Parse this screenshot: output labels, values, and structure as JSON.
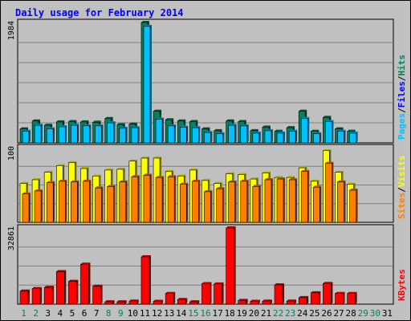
{
  "chart_data": {
    "type": "bar",
    "title": "Daily usage for February 2014",
    "categories": [
      "1",
      "2",
      "3",
      "4",
      "5",
      "6",
      "7",
      "8",
      "9",
      "10",
      "11",
      "12",
      "13",
      "14",
      "15",
      "16",
      "17",
      "18",
      "19",
      "20",
      "21",
      "22",
      "23",
      "24",
      "25",
      "26",
      "27",
      "28",
      "29",
      "30",
      "31"
    ],
    "weekend_days": [
      "1",
      "2",
      "8",
      "9",
      "15",
      "16",
      "22",
      "23",
      "29",
      "30"
    ],
    "panels": [
      {
        "id": "hits-files-pages",
        "ymax": 1984,
        "tick_label": "1984",
        "axis_labels": [
          "Pages",
          "/",
          "Files",
          "/",
          "Hits"
        ],
        "series": [
          {
            "name": "Hits",
            "color": "#00805c",
            "values": [
              230,
              360,
              290,
              345,
              350,
              345,
              340,
              400,
              300,
              310,
              1984,
              520,
              380,
              360,
              350,
              230,
              200,
              360,
              350,
              200,
              260,
              190,
              250,
              520,
              190,
              420,
              230,
              190,
              0,
              0,
              0
            ]
          },
          {
            "name": "Files",
            "color": "#00c0ff",
            "values": [
              190,
              290,
              230,
              265,
              290,
              280,
              280,
              330,
              240,
              250,
              1920,
              390,
              280,
              260,
              250,
              170,
              150,
              290,
              280,
              160,
              200,
              160,
              190,
              400,
              150,
              350,
              190,
              160,
              0,
              0,
              0
            ]
          },
          {
            "name": "Pages",
            "color": "#00c0ff",
            "values": [
              0,
              0,
              0,
              0,
              0,
              0,
              0,
              0,
              0,
              0,
              0,
              0,
              0,
              0,
              0,
              0,
              0,
              0,
              0,
              0,
              0,
              0,
              0,
              0,
              0,
              0,
              0,
              0,
              0,
              0,
              0
            ]
          }
        ]
      },
      {
        "id": "visits-sites",
        "ymax": 100,
        "tick_label": "100",
        "axis_labels": [
          "Sites",
          "/",
          "Visits"
        ],
        "series": [
          {
            "name": "Visits",
            "color": "#ffff00",
            "values": [
              52,
              57,
              67,
              76,
              80,
              72,
              62,
              70,
              71,
              82,
              86,
              86,
              68,
              62,
              70,
              56,
              52,
              65,
              64,
              58,
              66,
              60,
              60,
              73,
              55,
              96,
              67,
              51,
              0,
              0,
              0
            ]
          },
          {
            "name": "Sites",
            "color": "#ff8000",
            "values": [
              38,
              42,
              53,
              55,
              54,
              55,
              46,
              48,
              54,
              61,
              63,
              60,
              61,
              51,
              55,
              41,
              45,
              54,
              55,
              48,
              57,
              58,
              57,
              68,
              47,
              79,
              54,
              43,
              0,
              0,
              0
            ]
          }
        ]
      },
      {
        "id": "kbytes",
        "ymax": 32861,
        "tick_label": "32861",
        "axis_labels": [
          "KBytes"
        ],
        "series": [
          {
            "name": "KBytes",
            "color": "#ff0000",
            "values": [
              5600,
              6700,
              7200,
              14000,
              9800,
              17200,
              7700,
              1000,
              1000,
              1300,
              20400,
              1200,
              4600,
              2000,
              1000,
              8800,
              8700,
              32861,
              1600,
              1200,
              1300,
              8300,
              1300,
              2800,
              4900,
              8900,
              4600,
              4600,
              0,
              0,
              0
            ]
          }
        ]
      }
    ]
  }
}
